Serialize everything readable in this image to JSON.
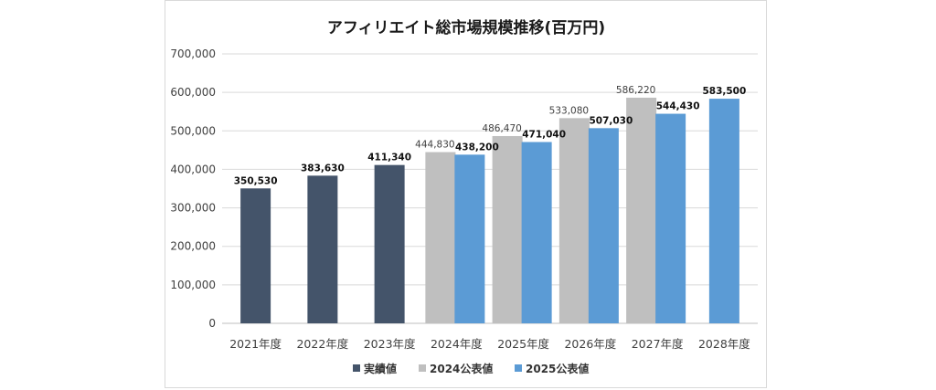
{
  "chart_data": {
    "type": "bar",
    "title": "アフィリエイト総市場規模推移(百万円)",
    "categories": [
      "2021年度",
      "2022年度",
      "2023年度",
      "2024年度",
      "2025年度",
      "2026年度",
      "2027年度",
      "2028年度"
    ],
    "ylim": [
      0,
      700000
    ],
    "yticks": [
      0,
      100000,
      200000,
      300000,
      400000,
      500000,
      600000,
      700000
    ],
    "ytick_labels": [
      "0",
      "100,000",
      "200,000",
      "300,000",
      "400,000",
      "500,000",
      "600,000",
      "700,000"
    ],
    "grid": true,
    "legend_position": "bottom",
    "series": [
      {
        "name": "実績値",
        "color": "#44546a",
        "values": [
          350530,
          383630,
          411340,
          null,
          null,
          null,
          null,
          null
        ],
        "labels": [
          "350,530",
          "383,630",
          "411,340",
          null,
          null,
          null,
          null,
          null
        ]
      },
      {
        "name": "2024公表値",
        "color": "#bfbfbf",
        "values": [
          null,
          null,
          null,
          444830,
          486470,
          533080,
          586220,
          null
        ],
        "labels": [
          null,
          null,
          null,
          "444,830",
          "486,470",
          "533,080",
          "586,220",
          null
        ]
      },
      {
        "name": "2025公表値",
        "color": "#5b9bd5",
        "values": [
          null,
          null,
          null,
          438200,
          471040,
          507030,
          544430,
          583500
        ],
        "labels": [
          null,
          null,
          null,
          "438,200",
          "471,040",
          "507,030",
          "544,430",
          "583,500"
        ]
      }
    ]
  }
}
